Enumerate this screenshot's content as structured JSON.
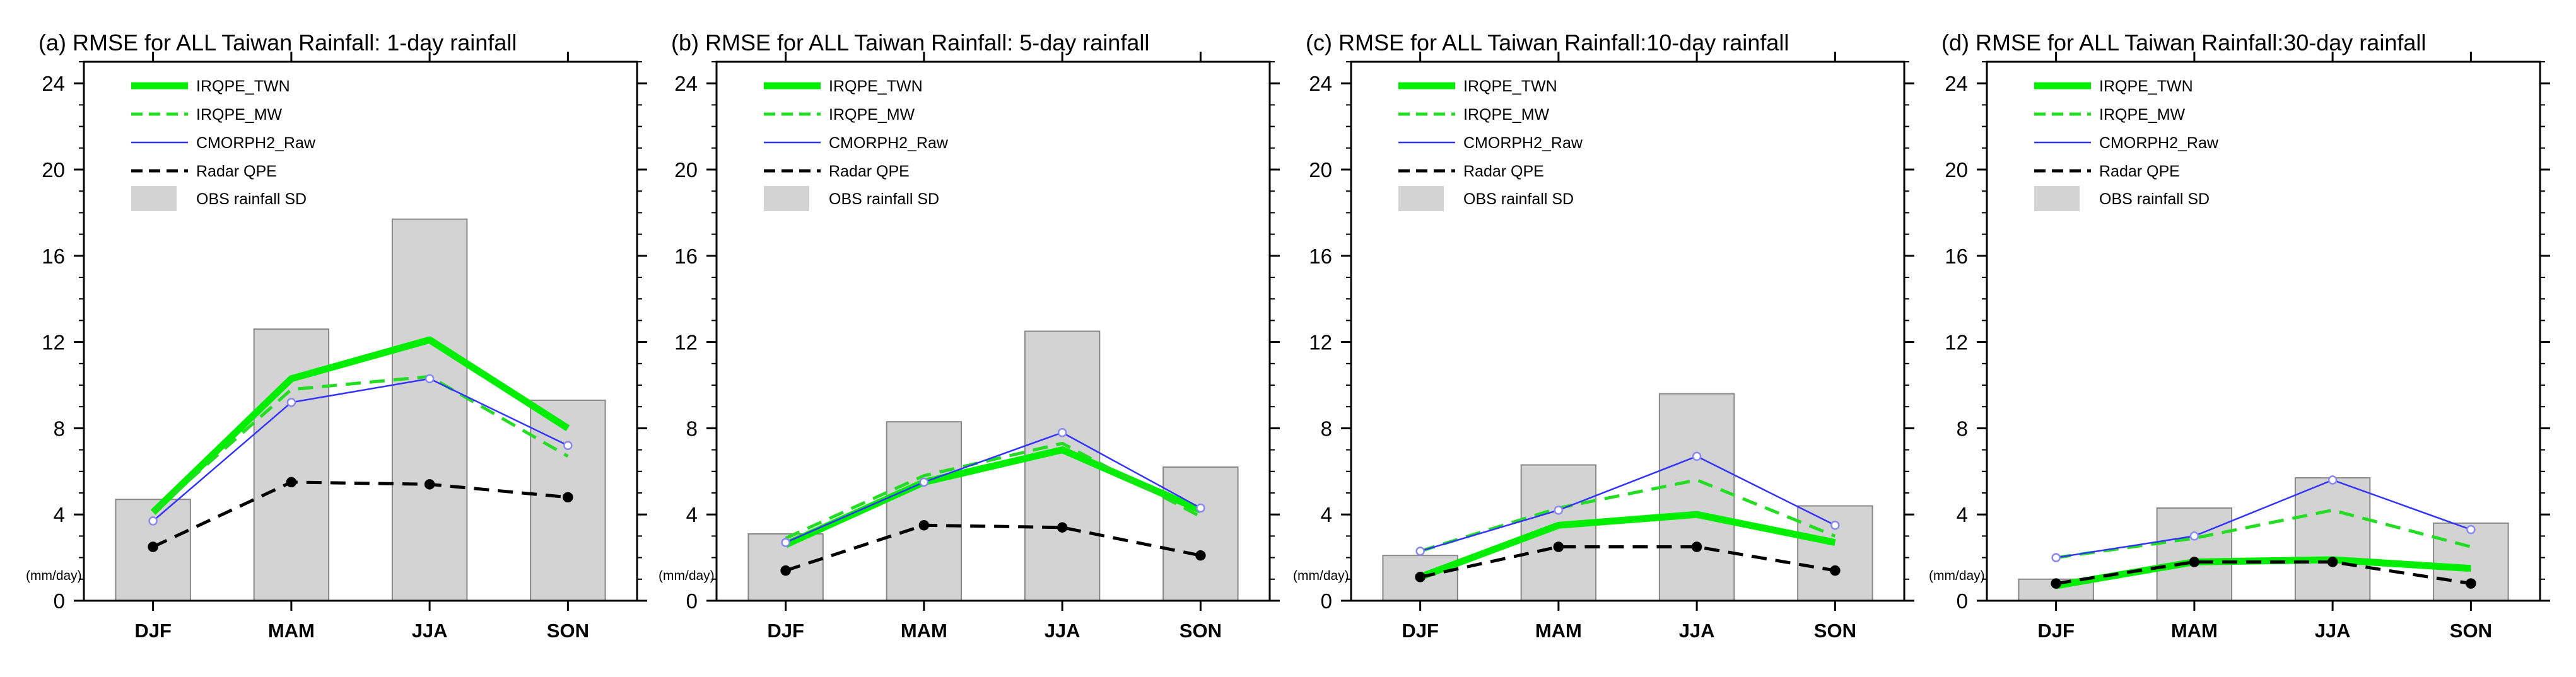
{
  "chart_data": [
    {
      "type": "bar",
      "title": "(a) RMSE for ALL Taiwan Rainfall: 1-day rainfall",
      "ylabel": "(mm/day)",
      "xlabel": "",
      "categories": [
        "DJF",
        "MAM",
        "JJA",
        "SON"
      ],
      "ylim": [
        0,
        25
      ],
      "yticks": [
        0,
        4,
        8,
        12,
        16,
        20,
        24
      ],
      "legend_position": "top-left",
      "bars": {
        "name": "OBS rainfall SD",
        "values": [
          4.7,
          12.6,
          17.7,
          9.3
        ]
      },
      "series": [
        {
          "name": "IRQPE_TWN",
          "values": [
            4.1,
            10.3,
            12.1,
            8.0
          ]
        },
        {
          "name": "IRQPE_MW",
          "values": [
            4.1,
            9.8,
            10.4,
            6.7
          ]
        },
        {
          "name": "CMORPH2_Raw",
          "values": [
            3.7,
            9.2,
            10.3,
            7.2
          ]
        },
        {
          "name": "Radar QPE",
          "values": [
            2.5,
            5.5,
            5.4,
            4.8
          ]
        }
      ]
    },
    {
      "type": "bar",
      "title": "(b) RMSE for ALL Taiwan Rainfall: 5-day rainfall",
      "ylabel": "(mm/day)",
      "xlabel": "",
      "categories": [
        "DJF",
        "MAM",
        "JJA",
        "SON"
      ],
      "ylim": [
        0,
        25
      ],
      "yticks": [
        0,
        4,
        8,
        12,
        16,
        20,
        24
      ],
      "legend_position": "top-left",
      "bars": {
        "name": "OBS rainfall SD",
        "values": [
          3.1,
          8.3,
          12.5,
          6.2
        ]
      },
      "series": [
        {
          "name": "IRQPE_TWN",
          "values": [
            2.6,
            5.5,
            7.0,
            4.2
          ]
        },
        {
          "name": "IRQPE_MW",
          "values": [
            2.9,
            5.8,
            7.3,
            3.9
          ]
        },
        {
          "name": "CMORPH2_Raw",
          "values": [
            2.7,
            5.5,
            7.8,
            4.3
          ]
        },
        {
          "name": "Radar QPE",
          "values": [
            1.4,
            3.5,
            3.4,
            2.1
          ]
        }
      ]
    },
    {
      "type": "bar",
      "title": "(c) RMSE for ALL Taiwan Rainfall:10-day rainfall",
      "ylabel": "(mm/day)",
      "xlabel": "",
      "categories": [
        "DJF",
        "MAM",
        "JJA",
        "SON"
      ],
      "ylim": [
        0,
        25
      ],
      "yticks": [
        0,
        4,
        8,
        12,
        16,
        20,
        24
      ],
      "legend_position": "top-left",
      "bars": {
        "name": "OBS rainfall SD",
        "values": [
          2.1,
          6.3,
          9.6,
          4.4
        ]
      },
      "series": [
        {
          "name": "IRQPE_TWN",
          "values": [
            1.1,
            3.5,
            4.0,
            2.7
          ]
        },
        {
          "name": "IRQPE_MW",
          "values": [
            2.3,
            4.3,
            5.6,
            3.0
          ]
        },
        {
          "name": "CMORPH2_Raw",
          "values": [
            2.3,
            4.2,
            6.7,
            3.5
          ]
        },
        {
          "name": "Radar QPE",
          "values": [
            1.1,
            2.5,
            2.5,
            1.4
          ]
        }
      ]
    },
    {
      "type": "bar",
      "title": "(d) RMSE for ALL Taiwan Rainfall:30-day rainfall",
      "ylabel": "(mm/day)",
      "xlabel": "",
      "categories": [
        "DJF",
        "MAM",
        "JJA",
        "SON"
      ],
      "ylim": [
        0,
        25
      ],
      "yticks": [
        0,
        4,
        8,
        12,
        16,
        20,
        24
      ],
      "legend_position": "top-left",
      "bars": {
        "name": "OBS rainfall SD",
        "values": [
          1.0,
          4.3,
          5.7,
          3.6
        ]
      },
      "series": [
        {
          "name": "IRQPE_TWN",
          "values": [
            0.7,
            1.8,
            1.9,
            1.5
          ]
        },
        {
          "name": "IRQPE_MW",
          "values": [
            2.0,
            2.9,
            4.2,
            2.5
          ]
        },
        {
          "name": "CMORPH2_Raw",
          "values": [
            2.0,
            3.0,
            5.6,
            3.3
          ]
        },
        {
          "name": "Radar QPE",
          "values": [
            0.8,
            1.8,
            1.8,
            0.8
          ]
        }
      ]
    }
  ],
  "styles": {
    "IRQPE_TWN": {
      "color": "#00ee00",
      "dash": "",
      "markers": false,
      "width_class": "thick"
    },
    "IRQPE_MW": {
      "color": "#22dd22",
      "dash": "dashed",
      "markers": false,
      "width_class": "medium"
    },
    "CMORPH2_Raw": {
      "color": "#3333ff",
      "dash": "",
      "markers": true,
      "marker_color": "#8888ee",
      "width_class": "thin"
    },
    "Radar QPE": {
      "color": "#000000",
      "dash": "dashed",
      "markers": true,
      "marker_color": "#000000",
      "width_class": "medium"
    },
    "OBS rainfall SD": {
      "color": "#d3d3d3",
      "edge": "#888888"
    }
  }
}
